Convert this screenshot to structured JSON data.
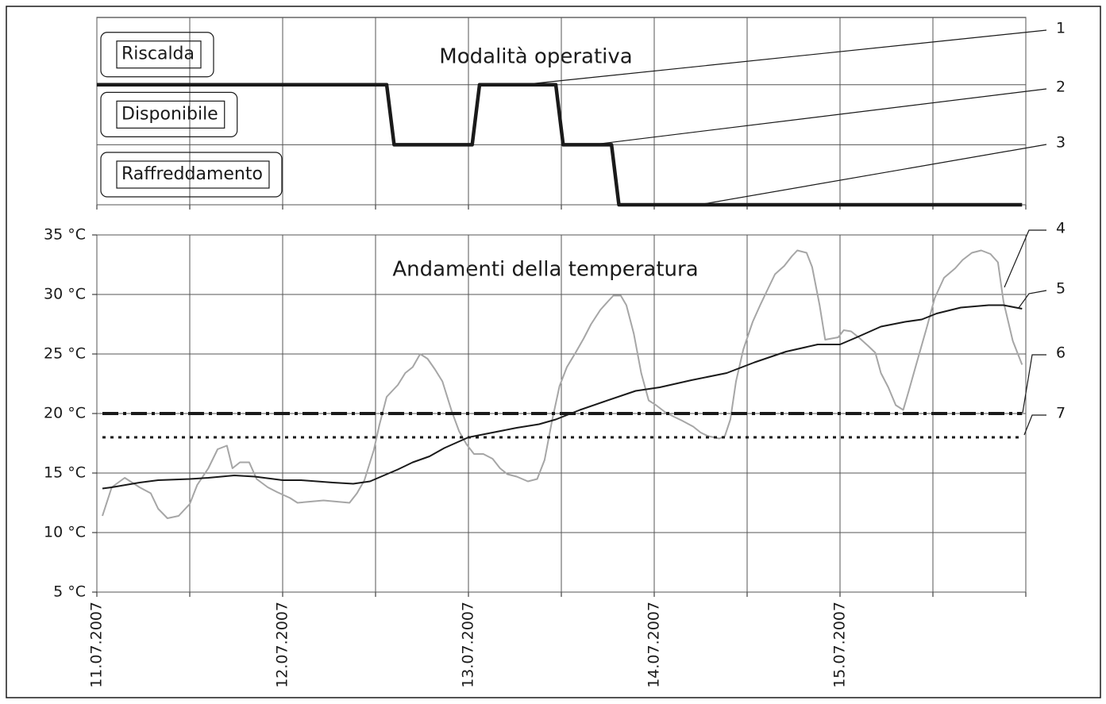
{
  "chart_data": [
    {
      "type": "line",
      "title": "Modalità operativa",
      "xlim": [
        0,
        5
      ],
      "xminor": [
        0,
        0.5,
        1,
        1.5,
        2,
        2.5,
        3,
        3.5,
        4,
        4.5,
        5
      ],
      "ylim": [
        0,
        3.12
      ],
      "yticks": [
        {
          "value": 2,
          "label": "Riscalda"
        },
        {
          "value": 1,
          "label": "Disponibile"
        },
        {
          "value": 0,
          "label": "Raffreddamento"
        }
      ],
      "grid": true,
      "series": [
        {
          "color": "#1a1a1a",
          "width": 4.5,
          "x": [
            0,
            1.56,
            1.6,
            2.02,
            2.06,
            2.47,
            2.51,
            2.77,
            2.81,
            4.98
          ],
          "values": [
            2,
            2,
            1,
            1,
            2,
            2,
            1,
            1,
            0,
            0
          ]
        }
      ],
      "annotations": [
        "1",
        "2",
        "3"
      ]
    },
    {
      "type": "line",
      "title": "Andamenti della temperatura",
      "xlim": [
        0,
        5
      ],
      "xticks": [
        {
          "value": 0,
          "label": "11.07.2007"
        },
        {
          "value": 1,
          "label": "12.07.2007"
        },
        {
          "value": 2,
          "label": "13.07.2007"
        },
        {
          "value": 3,
          "label": "14.07.2007"
        },
        {
          "value": 4,
          "label": "15.07.2007"
        }
      ],
      "xminor": [
        0.5,
        1.5,
        2.5,
        3.5,
        4.5,
        5
      ],
      "ylim": [
        5,
        35
      ],
      "yticks": [
        {
          "value": 5,
          "label": "5 °C"
        },
        {
          "value": 10,
          "label": "10 °C"
        },
        {
          "value": 15,
          "label": "15 °C"
        },
        {
          "value": 20,
          "label": "20 °C"
        },
        {
          "value": 25,
          "label": "25 °C"
        },
        {
          "value": 30,
          "label": "30 °C"
        },
        {
          "value": 35,
          "label": "35 °C"
        }
      ],
      "grid": true,
      "series": [
        {
          "color": "#a6a6a6",
          "width": 2,
          "x": [
            0.03,
            0.08,
            0.15,
            0.23,
            0.29,
            0.33,
            0.38,
            0.44,
            0.5,
            0.54,
            0.6,
            0.65,
            0.7,
            0.73,
            0.77,
            0.82,
            0.86,
            0.92,
            0.97,
            1.04,
            1.08,
            1.22,
            1.36,
            1.4,
            1.44,
            1.49,
            1.52,
            1.56,
            1.62,
            1.66,
            1.7,
            1.74,
            1.78,
            1.82,
            1.86,
            1.91,
            1.95,
            1.99,
            2.03,
            2.08,
            2.13,
            2.17,
            2.21,
            2.26,
            2.32,
            2.37,
            2.41,
            2.45,
            2.49,
            2.53,
            2.58,
            2.62,
            2.66,
            2.71,
            2.75,
            2.78,
            2.82,
            2.85,
            2.89,
            2.93,
            2.97,
            3.01,
            3.06,
            3.11,
            3.15,
            3.21,
            3.25,
            3.29,
            3.35,
            3.38,
            3.41,
            3.44,
            3.48,
            3.53,
            3.57,
            3.61,
            3.65,
            3.7,
            3.74,
            3.77,
            3.82,
            3.85,
            3.89,
            3.92,
            3.99,
            4.02,
            4.06,
            4.1,
            4.15,
            4.19,
            4.22,
            4.26,
            4.3,
            4.34,
            4.37,
            4.41,
            4.47,
            4.51,
            4.56,
            4.62,
            4.66,
            4.71,
            4.76,
            4.81,
            4.85,
            4.88,
            4.93,
            4.98
          ],
          "values": [
            11.4,
            13.8,
            14.6,
            13.8,
            13.3,
            12.0,
            11.2,
            11.4,
            12.4,
            14.0,
            15.4,
            17.0,
            17.3,
            15.4,
            15.9,
            15.9,
            14.5,
            13.8,
            13.4,
            12.9,
            12.5,
            12.7,
            12.5,
            13.3,
            14.4,
            16.9,
            19.0,
            21.4,
            22.4,
            23.4,
            23.9,
            25.0,
            24.6,
            23.7,
            22.7,
            20.2,
            18.5,
            17.4,
            16.6,
            16.6,
            16.2,
            15.4,
            14.9,
            14.7,
            14.3,
            14.5,
            16.1,
            19.4,
            22.3,
            23.9,
            25.2,
            26.3,
            27.5,
            28.7,
            29.4,
            29.9,
            29.9,
            29.1,
            26.7,
            23.4,
            21.1,
            20.7,
            20.1,
            19.7,
            19.4,
            18.9,
            18.4,
            18.1,
            17.9,
            18.1,
            19.5,
            22.7,
            25.4,
            27.7,
            29.1,
            30.4,
            31.7,
            32.4,
            33.2,
            33.7,
            33.5,
            32.3,
            29.1,
            26.2,
            26.4,
            27.0,
            26.9,
            26.4,
            25.7,
            25.1,
            23.4,
            22.2,
            20.7,
            20.3,
            21.9,
            24.1,
            27.4,
            29.7,
            31.4,
            32.2,
            32.9,
            33.5,
            33.7,
            33.4,
            32.7,
            29.4,
            26.1,
            24.1
          ]
        },
        {
          "color": "#1a1a1a",
          "width": 2,
          "x": [
            0.03,
            0.08,
            0.23,
            0.33,
            0.5,
            0.6,
            0.74,
            0.85,
            1.0,
            1.1,
            1.27,
            1.38,
            1.47,
            1.53,
            1.62,
            1.7,
            1.79,
            1.87,
            2.0,
            2.13,
            2.26,
            2.38,
            2.47,
            2.6,
            2.73,
            2.9,
            3.03,
            3.2,
            3.39,
            3.54,
            3.71,
            3.88,
            4.0,
            4.09,
            4.22,
            4.35,
            4.44,
            4.52,
            4.65,
            4.8,
            4.88,
            4.98
          ],
          "values": [
            13.7,
            13.8,
            14.2,
            14.4,
            14.5,
            14.6,
            14.8,
            14.7,
            14.4,
            14.4,
            14.2,
            14.1,
            14.3,
            14.7,
            15.3,
            15.9,
            16.4,
            17.1,
            18.0,
            18.4,
            18.8,
            19.1,
            19.5,
            20.3,
            21.0,
            21.9,
            22.2,
            22.8,
            23.4,
            24.3,
            25.2,
            25.8,
            25.8,
            26.4,
            27.3,
            27.7,
            27.9,
            28.4,
            28.9,
            29.1,
            29.1,
            28.8
          ]
        },
        {
          "color": "#1a1a1a",
          "width": 4,
          "dash": "dashdot",
          "x": [
            0.03,
            4.98
          ],
          "values": [
            20,
            20
          ]
        },
        {
          "color": "#1a1a1a",
          "width": 3,
          "dash": "dot",
          "x": [
            0.03,
            4.98
          ],
          "values": [
            18,
            18
          ]
        }
      ],
      "annotations": [
        "4",
        "5",
        "6",
        "7"
      ]
    }
  ]
}
